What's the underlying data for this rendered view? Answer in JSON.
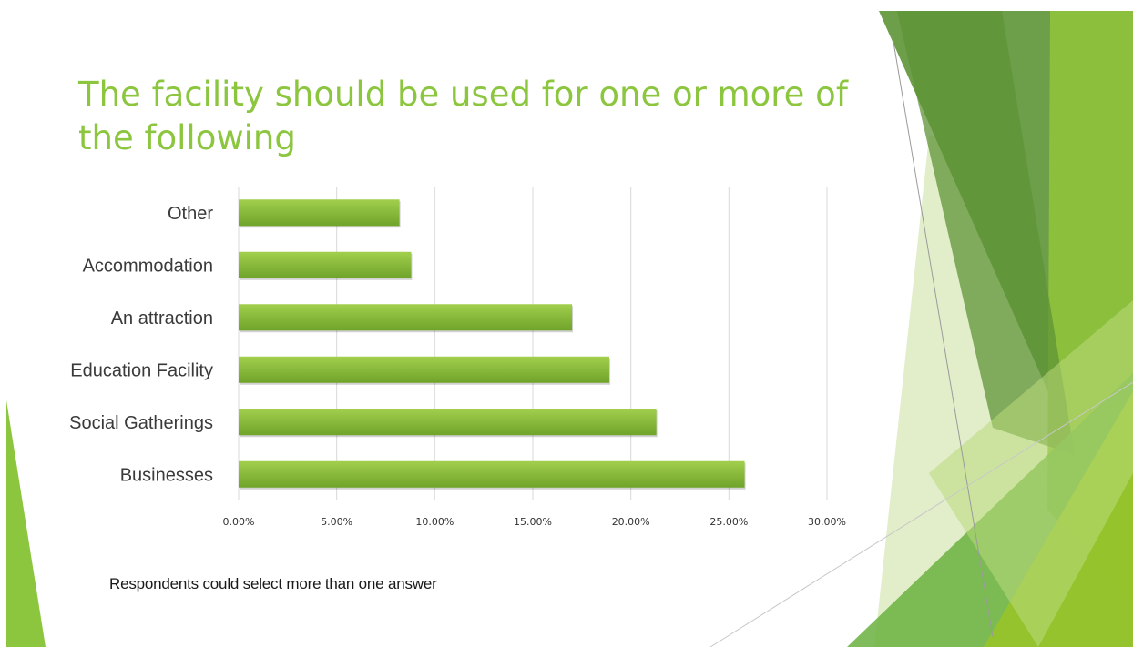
{
  "slide": {
    "title": "The facility should be used for one or more of the following",
    "note": "Respondents could select more than one answer"
  },
  "colors": {
    "title": "#8cc63f",
    "bar_top": "#a2cf4d",
    "bar_bottom": "#6fa32a",
    "grid": "#d9d9d9"
  },
  "chart_data": {
    "type": "bar",
    "orientation": "horizontal",
    "categories": [
      "Other",
      "Accommodation",
      "An attraction",
      "Education Facility",
      "Social Gatherings",
      "Businesses"
    ],
    "values": [
      8.2,
      8.8,
      17.0,
      18.9,
      21.3,
      25.8
    ],
    "value_unit": "%",
    "xlim": [
      0,
      30
    ],
    "x_ticks": [
      0,
      5,
      10,
      15,
      20,
      25,
      30
    ],
    "x_tick_labels": [
      "0.00%",
      "5.00%",
      "10.00%",
      "15.00%",
      "20.00%",
      "25.00%",
      "30.00%"
    ],
    "grid": true,
    "legend": false,
    "title": "",
    "xlabel": "",
    "ylabel": ""
  }
}
